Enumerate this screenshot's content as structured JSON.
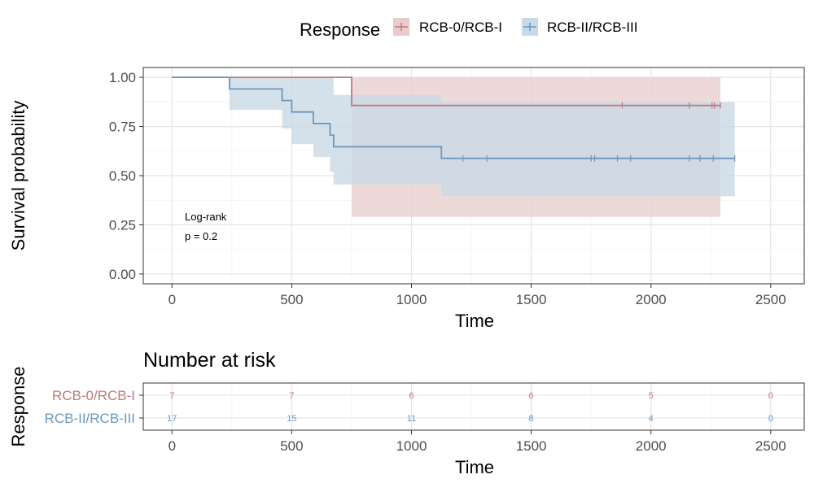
{
  "legend": {
    "title": "Response",
    "items": [
      {
        "label": "RCB-0/RCB-I",
        "color": "#c07a7a"
      },
      {
        "label": "RCB-II/RCB-III",
        "color": "#7aa3c4"
      }
    ]
  },
  "chart_data": [
    {
      "type": "line",
      "subtype": "kaplan-meier",
      "xlabel": "Time",
      "ylabel": "Survival probability",
      "xlim": [
        -120,
        2640
      ],
      "ylim": [
        -0.05,
        1.05
      ],
      "xticks": [
        0,
        500,
        1000,
        1500,
        2000,
        2500
      ],
      "yticks": [
        0.0,
        0.25,
        0.5,
        0.75,
        1.0
      ],
      "ytick_labels": [
        "0.00",
        "0.25",
        "0.50",
        "0.75",
        "1.00"
      ],
      "xtick_labels": [
        "0",
        "500",
        "1000",
        "1500",
        "2000",
        "2500"
      ],
      "grid": true,
      "annotation": [
        "Log-rank",
        "p = 0.2"
      ],
      "series": [
        {
          "name": "RCB-0/RCB-I",
          "color": "#c07a7a",
          "fill": "#e8cccc",
          "steps": [
            [
              0,
              1.0
            ],
            [
              750,
              1.0
            ],
            [
              750,
              0.857
            ],
            [
              2290,
              0.857
            ]
          ],
          "ci_upper": [
            [
              750,
              1.0
            ],
            [
              2290,
              1.0
            ]
          ],
          "ci_lower": [
            [
              750,
              1.0
            ],
            [
              750,
              0.29
            ],
            [
              2290,
              0.29
            ]
          ],
          "censor_times": [
            1880,
            2160,
            2255,
            2265,
            2290
          ]
        },
        {
          "name": "RCB-II/RCB-III",
          "color": "#6b97bd",
          "fill": "#c9dae6",
          "steps": [
            [
              0,
              1.0
            ],
            [
              240,
              1.0
            ],
            [
              240,
              0.941
            ],
            [
              460,
              0.941
            ],
            [
              460,
              0.882
            ],
            [
              500,
              0.882
            ],
            [
              500,
              0.824
            ],
            [
              590,
              0.824
            ],
            [
              590,
              0.765
            ],
            [
              660,
              0.765
            ],
            [
              660,
              0.706
            ],
            [
              675,
              0.706
            ],
            [
              675,
              0.647
            ],
            [
              1125,
              0.647
            ],
            [
              1125,
              0.588
            ],
            [
              2350,
              0.588
            ]
          ],
          "ci_upper": [
            [
              240,
              1.0
            ],
            [
              675,
              1.0
            ],
            [
              675,
              0.91
            ],
            [
              1125,
              0.91
            ],
            [
              1125,
              0.875
            ],
            [
              2350,
              0.875
            ]
          ],
          "ci_lower": [
            [
              240,
              0.835
            ],
            [
              460,
              0.835
            ],
            [
              460,
              0.74
            ],
            [
              500,
              0.74
            ],
            [
              500,
              0.66
            ],
            [
              590,
              0.66
            ],
            [
              590,
              0.595
            ],
            [
              660,
              0.595
            ],
            [
              660,
              0.52
            ],
            [
              675,
              0.52
            ],
            [
              675,
              0.455
            ],
            [
              1125,
              0.455
            ],
            [
              1125,
              0.395
            ],
            [
              2350,
              0.395
            ]
          ],
          "censor_times": [
            1215,
            1315,
            1750,
            1765,
            1860,
            1915,
            2160,
            2205,
            2260,
            2350
          ]
        }
      ]
    },
    {
      "type": "table",
      "title": "Number at risk",
      "xlabel": "Time",
      "ylabel": "Response",
      "xlim": [
        -120,
        2640
      ],
      "xticks": [
        0,
        500,
        1000,
        1500,
        2000,
        2500
      ],
      "xtick_labels": [
        "0",
        "500",
        "1000",
        "1500",
        "2000",
        "2500"
      ],
      "rows": [
        {
          "name": "RCB-0/RCB-I",
          "color": "#c07a7a",
          "values": [
            7,
            7,
            6,
            6,
            5,
            0
          ]
        },
        {
          "name": "RCB-II/RCB-III",
          "color": "#6b97bd",
          "values": [
            17,
            15,
            11,
            8,
            4,
            0
          ]
        }
      ]
    }
  ]
}
